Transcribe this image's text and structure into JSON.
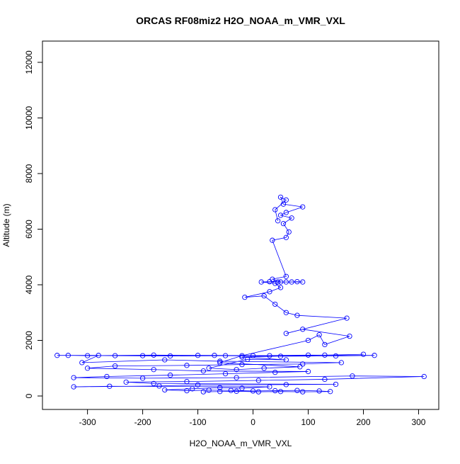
{
  "chart_data": {
    "type": "line",
    "title": "ORCAS RF08miz2 H2O_NOAA_m_VMR_VXL",
    "x_label": "H2O_NOAA_m_VMR_VXL",
    "y_label": "Altitude (m)",
    "color": "#0000ff",
    "markers": true,
    "grid": false,
    "xlim": [
      -381.6,
      336.6
    ],
    "ylim": [
      -484,
      12764
    ],
    "xticks": [
      -300,
      -200,
      -100,
      0,
      100,
      200,
      300
    ],
    "yticks": [
      0,
      2000,
      4000,
      6000,
      8000,
      10000,
      12000
    ],
    "x": [
      -90,
      -60,
      -30,
      10,
      50,
      90,
      140,
      120,
      80,
      40,
      0,
      -40,
      -80,
      -120,
      -160,
      -110,
      -60,
      -20,
      30,
      -260,
      -325,
      -170,
      -100,
      60,
      150,
      -180,
      -230,
      -120,
      10,
      130,
      310,
      180,
      -30,
      -200,
      -325,
      -265,
      -150,
      -50,
      40,
      100,
      -90,
      -180,
      -300,
      -250,
      -120,
      -20,
      90,
      160,
      -60,
      -160,
      -310,
      -280,
      -355,
      -200,
      -100,
      0,
      100,
      220,
      150,
      50,
      -50,
      -150,
      -250,
      -335,
      -300,
      -180,
      -70,
      30,
      130,
      200,
      -20,
      60,
      -10,
      -80,
      -30,
      20,
      85,
      -60,
      -20,
      100,
      120,
      130,
      175,
      90,
      60,
      170,
      80,
      60,
      40,
      20,
      -15,
      30,
      50,
      40,
      15,
      30,
      45,
      60,
      70,
      80,
      90,
      50,
      35,
      60,
      35,
      60,
      65,
      55,
      70,
      50,
      60,
      90,
      55,
      50,
      60,
      40,
      45
    ],
    "y": [
      150,
      160,
      170,
      150,
      160,
      150,
      160,
      180,
      200,
      190,
      180,
      200,
      210,
      190,
      220,
      260,
      300,
      280,
      330,
      350,
      330,
      360,
      400,
      410,
      420,
      450,
      500,
      520,
      560,
      600,
      700,
      720,
      660,
      640,
      660,
      700,
      750,
      800,
      850,
      880,
      900,
      950,
      1000,
      1080,
      1100,
      1130,
      1150,
      1200,
      1250,
      1300,
      1200,
      1460,
      1460,
      1450,
      1460,
      1450,
      1470,
      1460,
      1440,
      1430,
      1450,
      1440,
      1450,
      1460,
      1450,
      1470,
      1460,
      1450,
      1470,
      1500,
      1400,
      1300,
      1320,
      1000,
      950,
      1000,
      1050,
      1200,
      1450,
      2000,
      2200,
      1850,
      2150,
      2400,
      2250,
      2800,
      2900,
      3000,
      3300,
      3600,
      3550,
      3750,
      3900,
      4050,
      4100,
      4110,
      4100,
      4100,
      4100,
      4110,
      4100,
      4100,
      4200,
      4300,
      5600,
      5700,
      5900,
      6200,
      6400,
      6500,
      6600,
      6800,
      6900,
      7150,
      7050,
      6700,
      6300
    ]
  }
}
